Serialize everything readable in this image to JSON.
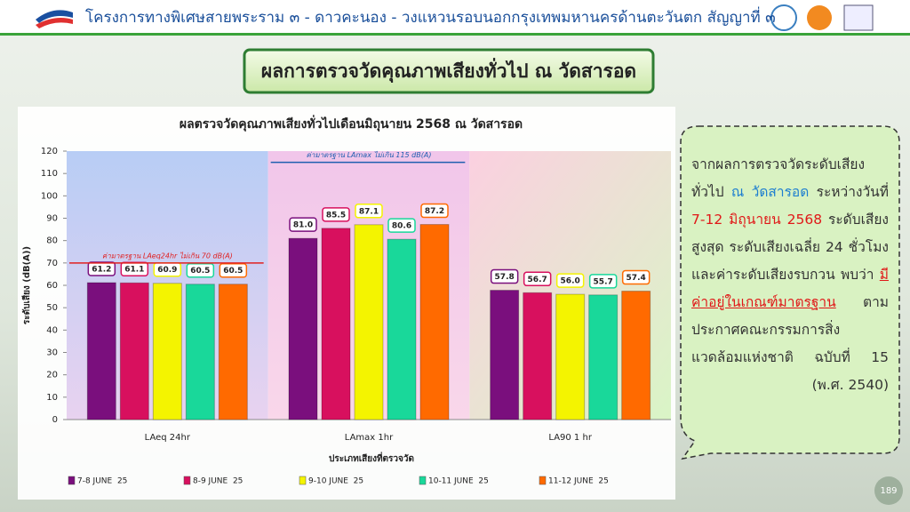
{
  "header": {
    "title": "โครงการทางพิเศษสายพระราม ๓ - ดาวคะนอง - วงแหวนรอบนอกกรุงเทพมหานครด้านตะวันตก สัญญาที่ ๓"
  },
  "banner": {
    "title": "ผลการตรวจวัดคุณภาพเสียงทั่วไป ณ วัดสารอด"
  },
  "chart_data": {
    "type": "bar",
    "title": "ผลตรวจวัดคุณภาพเสียงทั่วไปเดือนมิถุนายน 2568 ณ วัดสารอด",
    "x_label": "ประเภทเสียงที่ตรวจวัด",
    "y_label": "ระดับเสียง (dB(A))",
    "categories": [
      "LAeq 24hr",
      "LAmax 1hr",
      "LA90 1 hr"
    ],
    "series": [
      {
        "name": "7-8 JUNE  25",
        "color": "#7a0f7d",
        "values": [
          61.2,
          81,
          57.8
        ],
        "value_labels": [
          "61.2",
          "81.0",
          "57.8"
        ]
      },
      {
        "name": "8-9 JUNE  25",
        "color": "#d8105e",
        "values": [
          61.1,
          85.5,
          56.7
        ],
        "value_labels": [
          "61.1",
          "85.5",
          "56.7"
        ]
      },
      {
        "name": "9-10 JUNE  25",
        "color": "#f4f400",
        "values": [
          60.9,
          87.1,
          56
        ],
        "value_labels": [
          "60.9",
          "87.1",
          "56.0"
        ]
      },
      {
        "name": "10-11 JUNE  25",
        "color": "#19d89a",
        "values": [
          60.5,
          80.6,
          55.7
        ],
        "value_labels": [
          "60.5",
          "80.6",
          "55.7"
        ]
      },
      {
        "name": "11-12 JUNE  25",
        "color": "#ff6a00",
        "values": [
          60.5,
          87.2,
          57.4
        ],
        "value_labels": [
          "60.5",
          "87.2",
          "57.4"
        ]
      }
    ],
    "ylim": [
      0,
      120
    ],
    "yticks": [
      0,
      10,
      20,
      30,
      40,
      50,
      60,
      70,
      80,
      90,
      100,
      110,
      120
    ],
    "reference_lines": [
      {
        "value": 70,
        "label": "ค่ามาตรฐาน LAeq24hr ไม่เกิน 70 dB(A)",
        "color": "#e02020",
        "category": "LAeq 24hr"
      },
      {
        "value": 115,
        "label": "ค่ามาตรฐาน LAmax ไม่เกิน 115 dB(A)",
        "color": "#1f5fb0",
        "category": "LAmax 1hr"
      }
    ],
    "legend": "bottom"
  },
  "callout": {
    "parts": [
      {
        "text": "จากผลการตรวจวัดระดับเสียงทั่วไป ",
        "style": "plain"
      },
      {
        "text": "ณ วัดสารอด",
        "style": "blue"
      },
      {
        "text": " ระหว่างวันที่ ",
        "style": "plain"
      },
      {
        "text": "7-12 มิถุนายน 2568",
        "style": "red"
      },
      {
        "text": " ระดับเสียงสูงสุด ระดับเสียงเฉลี่ย 24 ชั่วโมง และค่าระดับเสียงรบกวน พบว่า ",
        "style": "plain"
      },
      {
        "text": "มีค่าอยู่ในเกณฑ์มาตรฐาน",
        "style": "red-underline"
      },
      {
        "text": " ตาม ประกาศคณะกรรมการสิ่งแวดล้อมแห่งชาติ ฉบับที่ 15 (พ.ศ. 2540)",
        "style": "plain"
      }
    ]
  },
  "page_number": "189"
}
